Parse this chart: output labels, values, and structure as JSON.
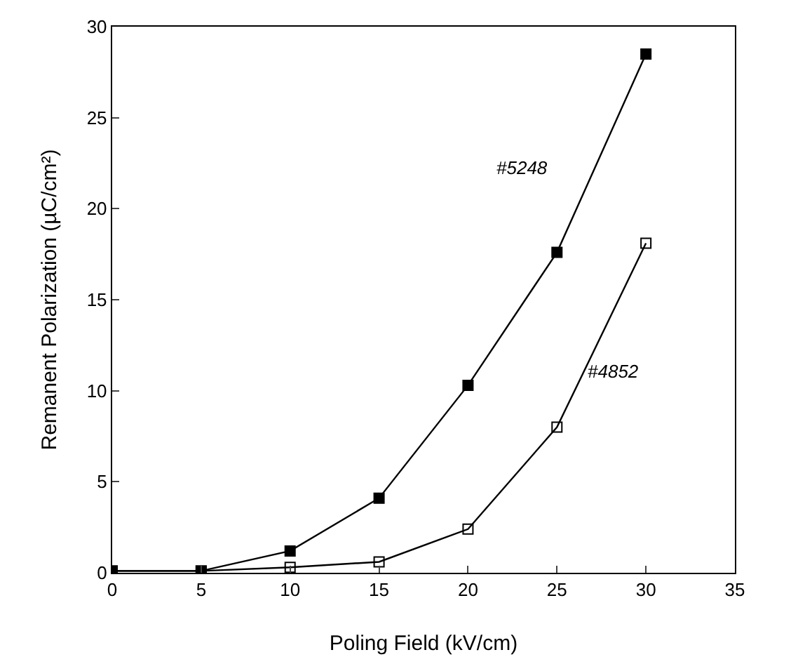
{
  "chart_data": {
    "type": "line",
    "xlabel": "Poling Field (kV/cm)",
    "ylabel": "Remanent Polarization (µC/cm²)",
    "x": [
      0,
      5,
      10,
      15,
      20,
      25,
      30
    ],
    "series": [
      {
        "name": "#5248",
        "color": "#000000",
        "values": [
          0.1,
          0.1,
          1.2,
          4.1,
          10.3,
          17.6,
          28.5
        ]
      },
      {
        "name": "#4852",
        "color": "#000000",
        "values": [
          0.1,
          0.1,
          0.3,
          0.6,
          2.4,
          8.0,
          18.1
        ]
      }
    ],
    "xlim": [
      0,
      35
    ],
    "xticks": [
      0,
      5,
      10,
      15,
      20,
      25,
      30,
      35
    ],
    "ylim": [
      0,
      30
    ],
    "yticks": [
      0,
      5,
      10,
      15,
      20,
      25,
      30
    ],
    "grid": false,
    "legend": false,
    "marker": "square",
    "line_style": "solid"
  }
}
